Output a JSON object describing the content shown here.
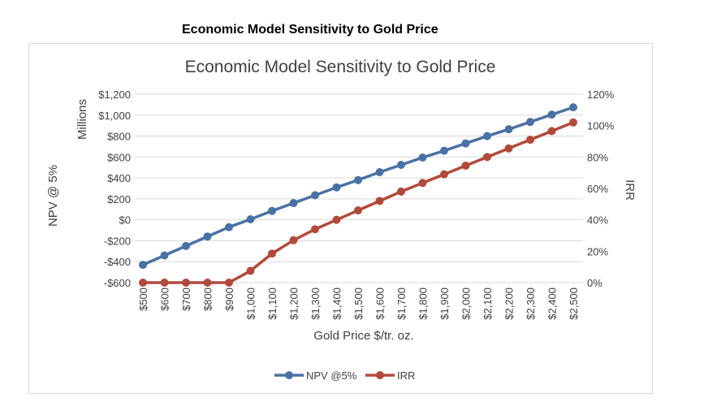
{
  "caption": "Economic Model Sensitivity to Gold Price",
  "chart_data": {
    "type": "line",
    "title": "Economic Model Sensitivity to Gold Price",
    "xlabel": "Gold Price $/tr. oz.",
    "ylabel": "NPV @ 5%",
    "ylabel_units": "Millions",
    "y2label": "IRR",
    "categories": [
      "$500",
      "$600",
      "$700",
      "$800",
      "$900",
      "$1,000",
      "$1,100",
      "$1,200",
      "$1,300",
      "$1,400",
      "$1,500",
      "$1,600",
      "$1,700",
      "$1,800",
      "$1,900",
      "$2,000",
      "$2,100",
      "$2,200",
      "$2,300",
      "$2,400",
      "$2,500"
    ],
    "ylim": [
      -600,
      1200
    ],
    "yticks": [
      -600,
      -400,
      -200,
      0,
      200,
      400,
      600,
      800,
      1000,
      1200
    ],
    "ytick_labels": [
      "-$600",
      "-$400",
      "-$200",
      "$0",
      "$200",
      "$400",
      "$600",
      "$800",
      "$1,000",
      "$1,200"
    ],
    "y2lim": [
      0,
      120
    ],
    "y2ticks": [
      0,
      20,
      40,
      60,
      80,
      100,
      120
    ],
    "y2tick_labels": [
      "0%",
      "20%",
      "40%",
      "60%",
      "80%",
      "100%",
      "120%"
    ],
    "grid": true,
    "legend_position": "bottom",
    "series": [
      {
        "name": "NPV @5%",
        "axis": "left",
        "color": "#4a71a4",
        "values": [
          -430,
          -340,
          -250,
          -160,
          -70,
          5,
          85,
          160,
          235,
          310,
          380,
          455,
          525,
          595,
          660,
          730,
          800,
          865,
          935,
          1005,
          1075
        ]
      },
      {
        "name": "IRR",
        "axis": "right",
        "color": "#b14a3b",
        "values": [
          0,
          0,
          0,
          0,
          0,
          7.5,
          18.5,
          27,
          34,
          40,
          46,
          52,
          58,
          63.5,
          69,
          74.5,
          80,
          85.5,
          91,
          96.5,
          102
        ]
      }
    ]
  }
}
